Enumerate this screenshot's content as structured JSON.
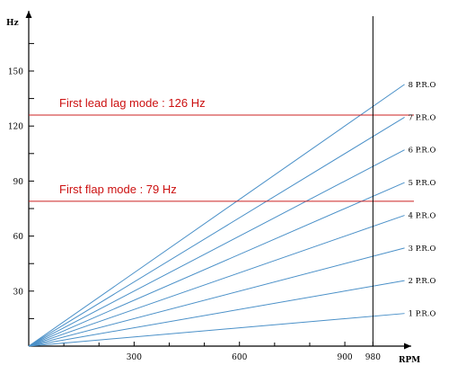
{
  "chart_data": {
    "type": "line",
    "xlabel": "RPM",
    "ylabel": "Hz",
    "xlim": [
      0,
      1070
    ],
    "ylim": [
      0,
      170
    ],
    "x_ticks": [
      {
        "value": 300,
        "label": "300"
      },
      {
        "value": 600,
        "label": "600"
      },
      {
        "value": 900,
        "label": "900"
      },
      {
        "value": 980,
        "label": "980"
      }
    ],
    "y_ticks": [
      {
        "value": 30,
        "label": "30"
      },
      {
        "value": 60,
        "label": "60"
      },
      {
        "value": 90,
        "label": "90"
      },
      {
        "value": 120,
        "label": "120"
      },
      {
        "value": 150,
        "label": "150"
      }
    ],
    "series": [
      {
        "name": "1 P.R.O",
        "per_rev": 1,
        "x": [
          0,
          1070
        ],
        "y": [
          0,
          17.8
        ]
      },
      {
        "name": "2 P.R.O",
        "per_rev": 2,
        "x": [
          0,
          1070
        ],
        "y": [
          0,
          35.7
        ]
      },
      {
        "name": "3 P.R.O",
        "per_rev": 3,
        "x": [
          0,
          1070
        ],
        "y": [
          0,
          53.5
        ]
      },
      {
        "name": "4 P.R.O",
        "per_rev": 4,
        "x": [
          0,
          1070
        ],
        "y": [
          0,
          71.3
        ]
      },
      {
        "name": "5 P.R.O",
        "per_rev": 5,
        "x": [
          0,
          1070
        ],
        "y": [
          0,
          89.2
        ]
      },
      {
        "name": "6 P.R.O",
        "per_rev": 6,
        "x": [
          0,
          1070
        ],
        "y": [
          0,
          107
        ]
      },
      {
        "name": "7 P.R.O",
        "per_rev": 7,
        "x": [
          0,
          1070
        ],
        "y": [
          0,
          124.8
        ]
      },
      {
        "name": "8 P.R.O",
        "per_rev": 8,
        "x": [
          0,
          1070
        ],
        "y": [
          0,
          142.7
        ]
      }
    ],
    "hlines": [
      {
        "y": 126,
        "label": "First lead lag mode : 126 Hz"
      },
      {
        "y": 79,
        "label": "First flap mode : 79 Hz"
      }
    ],
    "vline": {
      "x": 980
    },
    "colors": {
      "series": "#4a90c8",
      "hline": "#cc2222",
      "hline_label": "#cc1111",
      "vline": "#000000",
      "axis": "#000000",
      "text": "#000000"
    },
    "grid": false
  }
}
